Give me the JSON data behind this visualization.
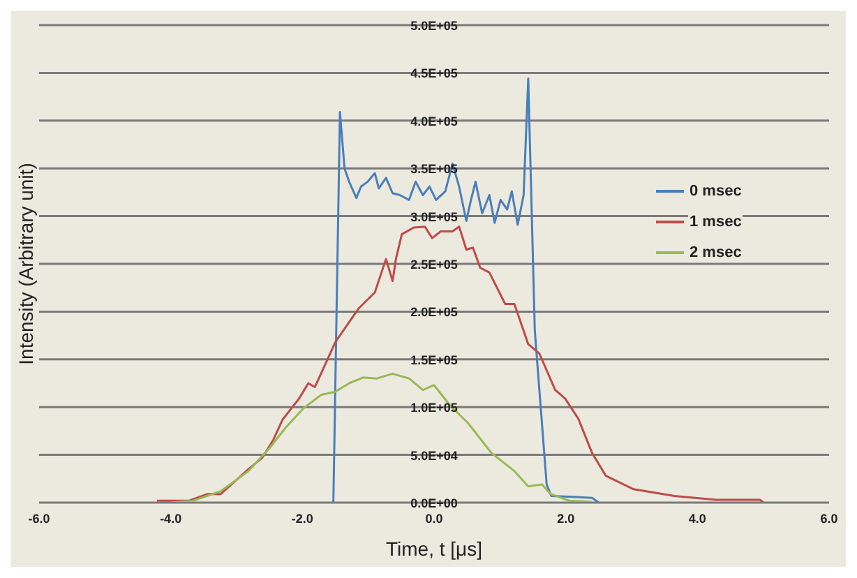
{
  "chart_data": {
    "type": "line",
    "xlabel": "Time, t [μs]",
    "ylabel": "Intensity (Arbitrary unit)",
    "xlim": [
      -6,
      6
    ],
    "xticks": [
      {
        "value": -6,
        "label": "-6.0"
      },
      {
        "value": -4,
        "label": "-4.0"
      },
      {
        "value": -2,
        "label": "-2.0"
      },
      {
        "value": 0,
        "label": "0.0"
      },
      {
        "value": 2,
        "label": "2.0"
      },
      {
        "value": 4,
        "label": "4.0"
      },
      {
        "value": 6,
        "label": "6.0"
      }
    ],
    "ylim": [
      0,
      500000
    ],
    "yticks": [
      {
        "value": 0,
        "label": "0.0E+00"
      },
      {
        "value": 50000,
        "label": "5.0E+04"
      },
      {
        "value": 100000,
        "label": "1.0E+05"
      },
      {
        "value": 150000,
        "label": "1.5E+05"
      },
      {
        "value": 200000,
        "label": "2.0E+05"
      },
      {
        "value": 250000,
        "label": "2.5E+05"
      },
      {
        "value": 300000,
        "label": "3.0E+05"
      },
      {
        "value": 350000,
        "label": "3.5E+05"
      },
      {
        "value": 400000,
        "label": "4.0E+05"
      },
      {
        "value": 450000,
        "label": "4.5E+05"
      },
      {
        "value": 500000,
        "label": "5.0E+05"
      }
    ],
    "grid": "y",
    "legend": "right",
    "marker": "none",
    "line_style": "solid",
    "series": [
      {
        "name": "0 msec",
        "color": "#4a7ebb",
        "x": [
          -1.55,
          -1.53,
          -1.43,
          -1.36,
          -1.29,
          -1.18,
          -1.11,
          -1.01,
          -0.9,
          -0.84,
          -0.73,
          -0.63,
          -0.52,
          -0.38,
          -0.28,
          -0.17,
          -0.07,
          0.03,
          0.17,
          0.28,
          0.38,
          0.49,
          0.56,
          0.63,
          0.73,
          0.84,
          0.92,
          1.01,
          1.11,
          1.18,
          1.27,
          1.36,
          1.43,
          1.53,
          1.71,
          1.78,
          2.1,
          2.4,
          2.5
        ],
        "values": [
          0,
          0,
          409000,
          350000,
          336000,
          319000,
          331000,
          336000,
          345000,
          329000,
          340000,
          324000,
          322000,
          317000,
          336000,
          322000,
          331000,
          317000,
          326000,
          355000,
          331000,
          295000,
          317000,
          336000,
          303000,
          322000,
          293000,
          317000,
          307000,
          326000,
          291000,
          322000,
          444000,
          180000,
          19000,
          7000,
          6000,
          5000,
          0
        ]
      },
      {
        "name": "1 msec",
        "color": "#be4b48",
        "x": [
          -4.21,
          -3.72,
          -3.44,
          -3.24,
          -2.82,
          -2.61,
          -2.44,
          -2.3,
          -2.05,
          -1.91,
          -1.81,
          -1.5,
          -1.15,
          -0.9,
          -0.77,
          -0.73,
          -0.63,
          -0.58,
          -0.49,
          -0.31,
          -0.14,
          -0.03,
          0.1,
          0.28,
          0.38,
          0.49,
          0.59,
          0.7,
          0.84,
          1.08,
          1.22,
          1.43,
          1.6,
          1.84,
          1.99,
          2.19,
          2.4,
          2.61,
          3.03,
          3.65,
          4.28,
          4.95,
          5.0
        ],
        "values": [
          2000,
          2000,
          9000,
          9000,
          35000,
          47000,
          66000,
          87000,
          109000,
          125000,
          121000,
          168000,
          203000,
          220000,
          247000,
          255000,
          232000,
          255000,
          281000,
          288000,
          289000,
          277000,
          284000,
          284000,
          289000,
          265000,
          267000,
          246000,
          241000,
          208000,
          208000,
          166000,
          156000,
          118000,
          109000,
          88000,
          52000,
          28000,
          14000,
          7000,
          3000,
          3000,
          0
        ]
      },
      {
        "name": "2 msec",
        "color": "#98b954",
        "x": [
          -4.0,
          -3.66,
          -3.24,
          -2.82,
          -2.5,
          -2.26,
          -1.98,
          -1.71,
          -1.5,
          -1.29,
          -1.08,
          -0.87,
          -0.63,
          -0.38,
          -0.17,
          0.0,
          0.24,
          0.52,
          0.87,
          1.22,
          1.43,
          1.64,
          1.77,
          2.05,
          2.4
        ],
        "values": [
          0,
          2000,
          12000,
          33000,
          57000,
          78000,
          99000,
          113000,
          116000,
          125000,
          131000,
          130000,
          135000,
          130000,
          118000,
          123000,
          102000,
          83000,
          52000,
          33000,
          17000,
          19000,
          9000,
          2000,
          1000
        ]
      }
    ]
  }
}
